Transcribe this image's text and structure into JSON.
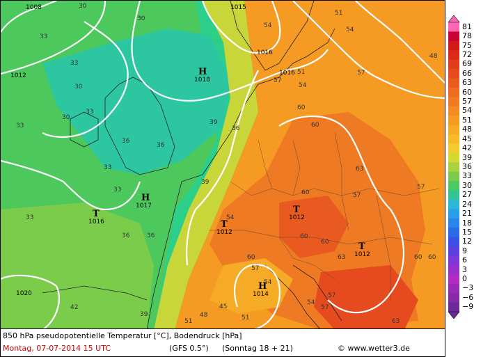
{
  "map": {
    "title": "850 hPa pseudopotentielle Temperatur [°C], Bodendruck [hPa]",
    "date_line": "Montag, 07-07-2014  15 UTC",
    "model": "(GFS 0.5°)",
    "run": "(Sonntag 18 + 21)",
    "site": "www.wetter3.de",
    "copyright_symbol": "©"
  },
  "legend": {
    "values": [
      "81",
      "78",
      "75",
      "72",
      "69",
      "66",
      "63",
      "60",
      "57",
      "54",
      "51",
      "48",
      "45",
      "42",
      "39",
      "36",
      "33",
      "30",
      "27",
      "24",
      "21",
      "18",
      "15",
      "12",
      "9",
      "6",
      "3",
      "0",
      "−3",
      "−6",
      "−9"
    ],
    "colors": [
      "#ff66b3",
      "#cc0033",
      "#d11a1a",
      "#dd2a1a",
      "#e03c1e",
      "#e64b1f",
      "#ec5a20",
      "#ef6a22",
      "#f27a24",
      "#f48b22",
      "#f59b24",
      "#f6ab26",
      "#f7bb28",
      "#f3cd2c",
      "#d6d832",
      "#a8d23e",
      "#7ccc4c",
      "#4ec860",
      "#33c496",
      "#2ab8d6",
      "#2a9ee8",
      "#2a84ea",
      "#2a6ae8",
      "#3a50e6",
      "#5a40e0",
      "#7a38d8",
      "#9a30cc",
      "#b22cc0",
      "#9c2ab8",
      "#862aa8",
      "#6c2a98"
    ]
  },
  "pressure_labels": [
    {
      "text": "1008"
    },
    {
      "text": "1015"
    },
    {
      "text": "1016"
    },
    {
      "text": "1016"
    },
    {
      "text": "1012"
    },
    {
      "text": "1020"
    }
  ],
  "centers": [
    {
      "type": "H",
      "value": "1018"
    },
    {
      "type": "H",
      "value": "1017"
    },
    {
      "type": "T",
      "value": "1016"
    },
    {
      "type": "T",
      "value": "1012"
    },
    {
      "type": "T",
      "value": "1012"
    },
    {
      "type": "T",
      "value": "1012"
    },
    {
      "type": "H",
      "value": "1014"
    }
  ],
  "isotherm_labels": [
    "30",
    "33",
    "30",
    "30",
    "33",
    "30",
    "33",
    "36",
    "36",
    "33",
    "33",
    "33",
    "36",
    "36",
    "33",
    "39",
    "36",
    "39",
    "39",
    "42",
    "45",
    "48",
    "51",
    "54",
    "54",
    "57",
    "54",
    "57",
    "60",
    "60",
    "60",
    "63",
    "60",
    "57",
    "60",
    "60",
    "57",
    "54",
    "51",
    "51",
    "54",
    "57",
    "57",
    "60",
    "63",
    "63",
    "60",
    "57",
    "54",
    "51",
    "48"
  ]
}
